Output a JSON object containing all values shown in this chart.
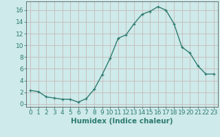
{
  "x": [
    0,
    1,
    2,
    3,
    4,
    5,
    6,
    7,
    8,
    9,
    10,
    11,
    12,
    13,
    14,
    15,
    16,
    17,
    18,
    19,
    20,
    21,
    22,
    23
  ],
  "y": [
    2.3,
    2.1,
    1.2,
    1.0,
    0.8,
    0.8,
    0.3,
    0.9,
    2.5,
    5.0,
    7.8,
    11.2,
    11.8,
    13.7,
    15.3,
    15.8,
    16.6,
    16.0,
    13.7,
    9.7,
    8.7,
    6.5,
    5.1,
    5.1
  ],
  "line_color": "#2d7a6e",
  "marker": "+",
  "marker_size": 3,
  "bg_color": "#ceeaea",
  "grid_color": "#b8d8d8",
  "xlabel": "Humidex (Indice chaleur)",
  "xlim": [
    -0.5,
    23.5
  ],
  "ylim": [
    -0.5,
    17.5
  ],
  "yticks": [
    0,
    2,
    4,
    6,
    8,
    10,
    12,
    14,
    16
  ],
  "xticks": [
    0,
    1,
    2,
    3,
    4,
    5,
    6,
    7,
    8,
    9,
    10,
    11,
    12,
    13,
    14,
    15,
    16,
    17,
    18,
    19,
    20,
    21,
    22,
    23
  ],
  "xtick_labels": [
    "0",
    "1",
    "2",
    "3",
    "4",
    "5",
    "6",
    "7",
    "8",
    "9",
    "10",
    "11",
    "12",
    "13",
    "14",
    "15",
    "16",
    "17",
    "18",
    "19",
    "20",
    "21",
    "22",
    "23"
  ],
  "axis_color": "#5a5a5a",
  "tick_color": "#2d7a6e",
  "font_size": 6.5,
  "xlabel_fontsize": 7.5,
  "label_color": "#2d7a6e",
  "grid_major_color": "#c8b8b8",
  "grid_minor_color": "#d8c8c8"
}
